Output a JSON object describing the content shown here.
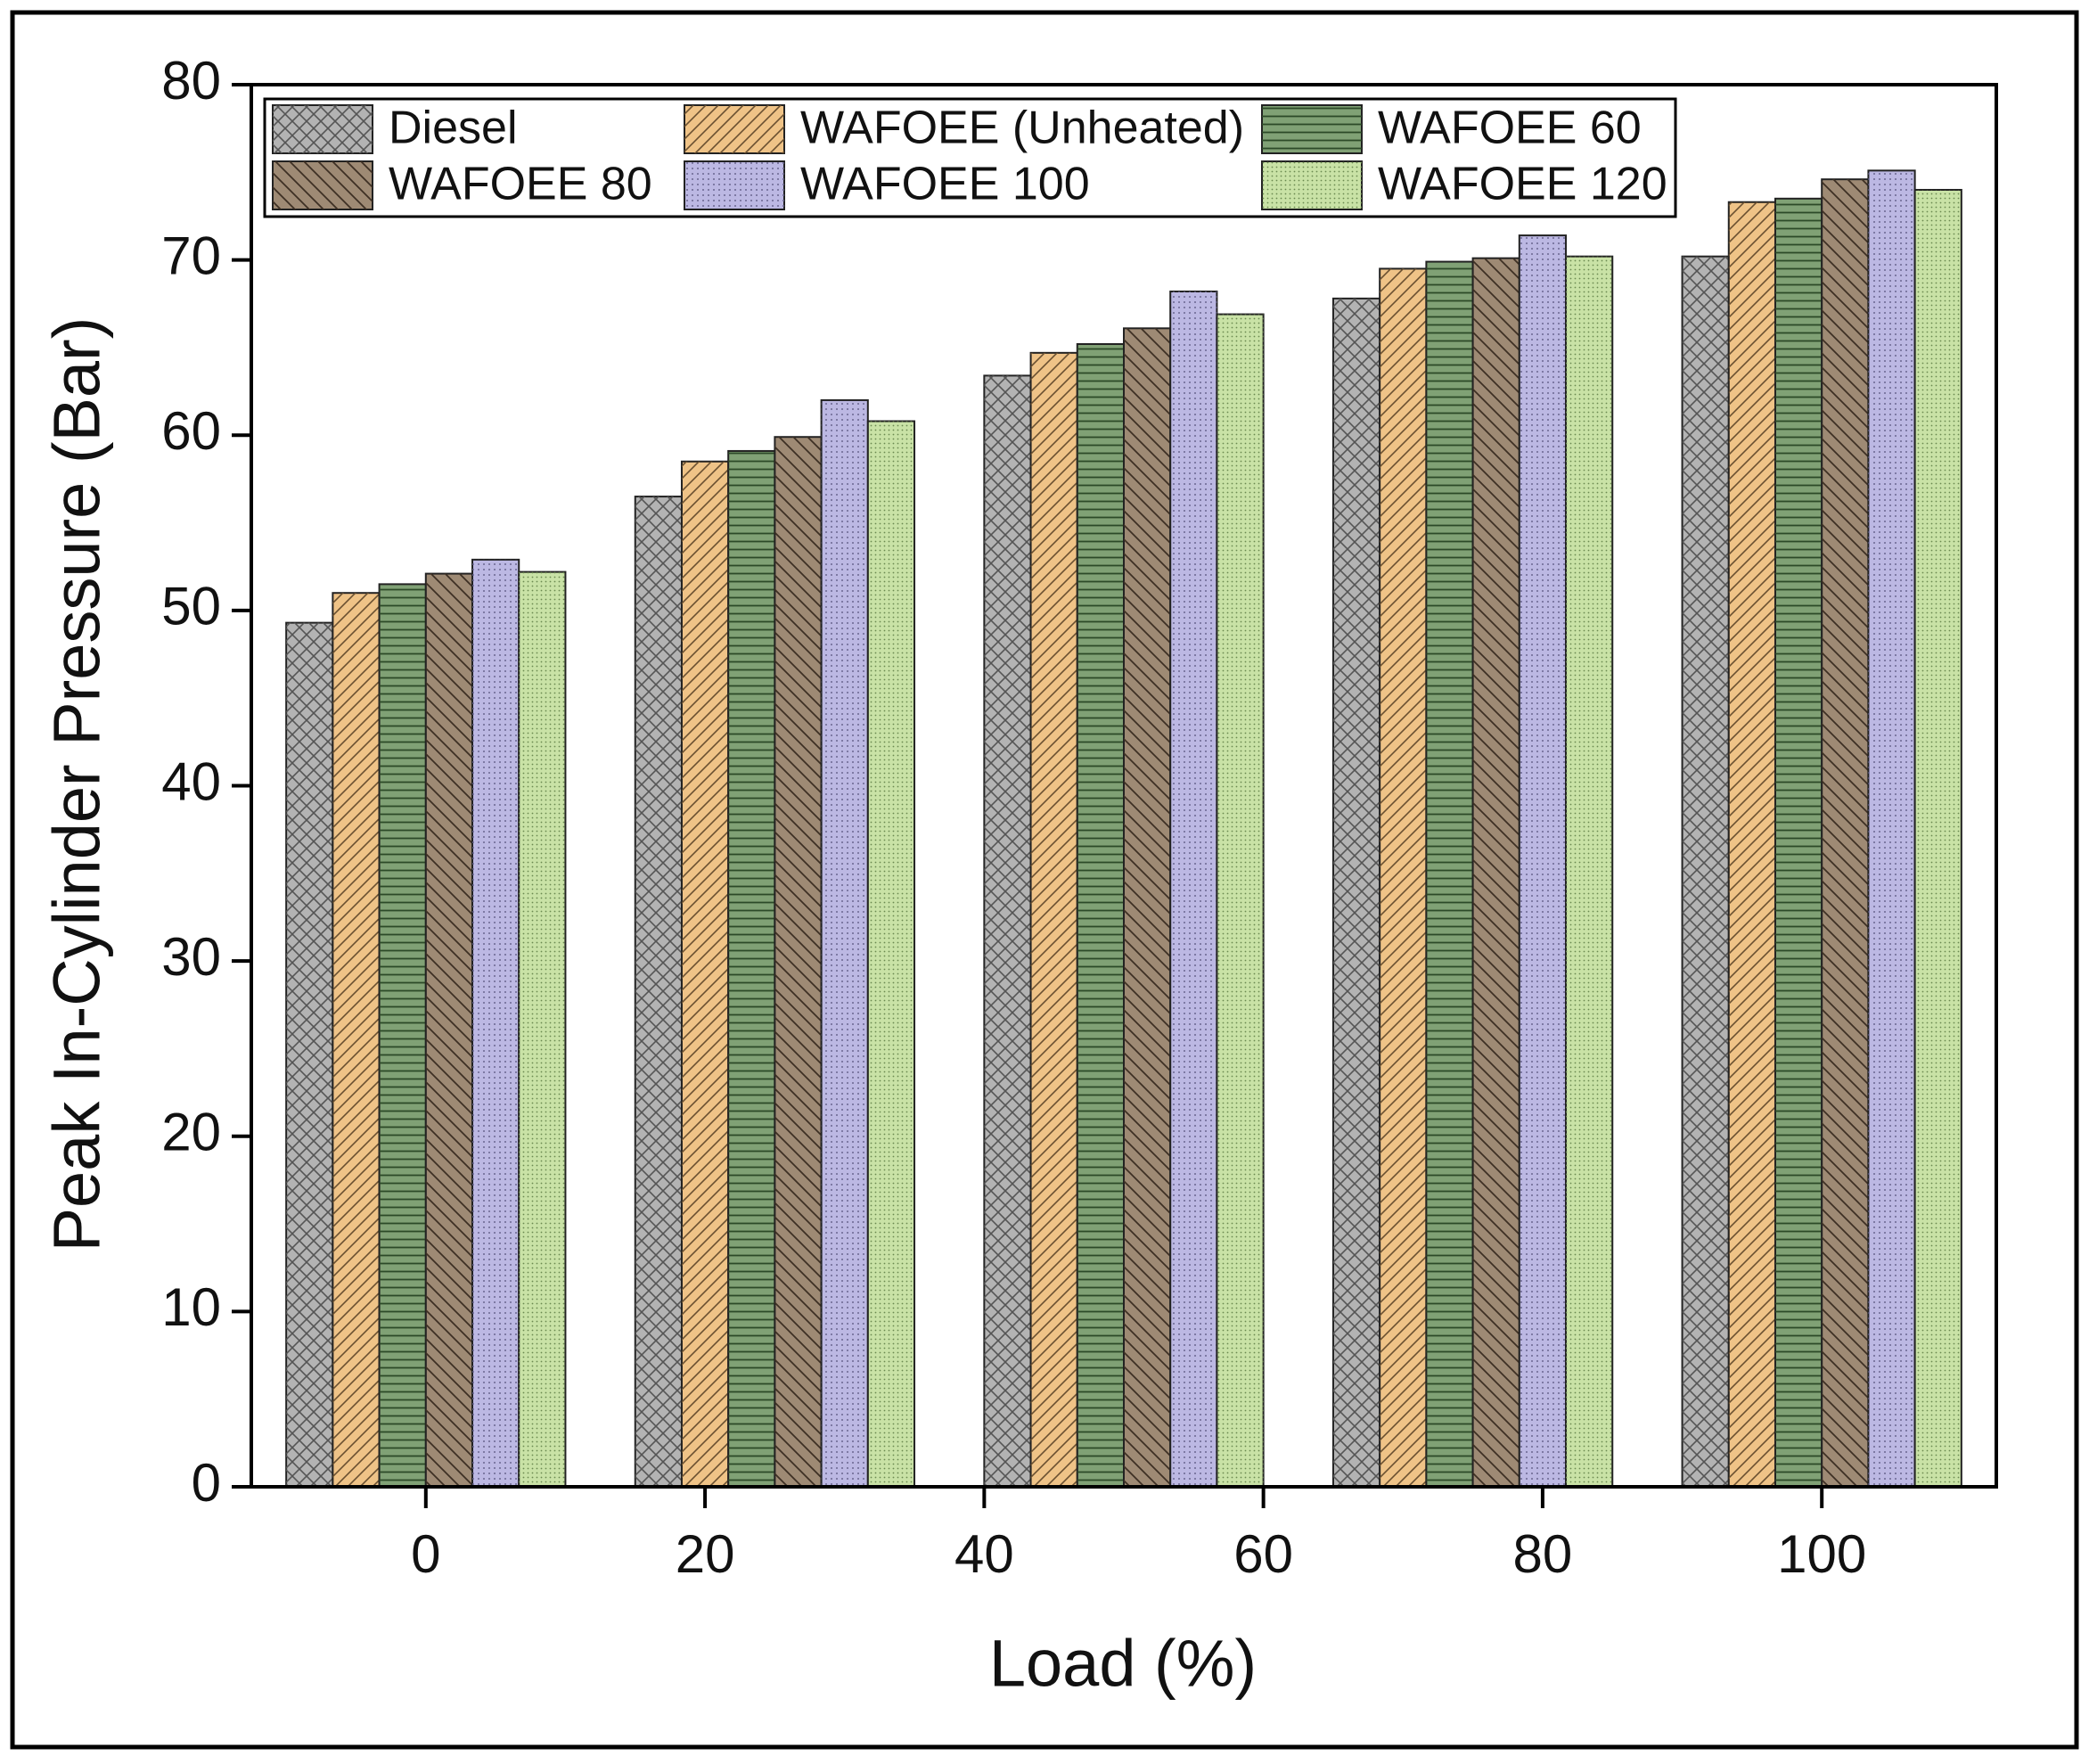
{
  "chart_data": {
    "type": "bar",
    "x_label": "Load (%)",
    "y_label": "Peak In-Cylinder Pressure (Bar)",
    "x": [
      0,
      25,
      50,
      75,
      100
    ],
    "group_width": 20,
    "xlim": [
      -12.5,
      112.5
    ],
    "xticks": [
      0,
      20,
      40,
      60,
      80,
      100
    ],
    "ylim": [
      0,
      80
    ],
    "yticks": [
      0,
      10,
      20,
      30,
      40,
      50,
      60,
      70,
      80
    ],
    "legend_position": "top-left",
    "legend_columns": 3,
    "series": [
      {
        "name": "Diesel",
        "color": "#b3b3b3",
        "pattern": "crosshatch",
        "values": [
          49.3,
          56.5,
          63.4,
          67.8,
          70.2
        ]
      },
      {
        "name": "WAFOEE (Unheated)",
        "color": "#efc387",
        "pattern": "forward-diagonal",
        "values": [
          51.0,
          58.5,
          64.7,
          69.5,
          73.3
        ]
      },
      {
        "name": "WAFOEE 60",
        "color": "#80a175",
        "pattern": "horizontal",
        "values": [
          51.5,
          59.1,
          65.2,
          69.9,
          73.5
        ]
      },
      {
        "name": "WAFOEE 80",
        "color": "#9e8a74",
        "pattern": "back-diagonal",
        "values": [
          52.1,
          59.9,
          66.1,
          70.1,
          74.6
        ]
      },
      {
        "name": "WAFOEE 100",
        "color": "#bcb8e3",
        "pattern": "dots",
        "values": [
          52.9,
          62.0,
          68.2,
          71.4,
          75.1
        ]
      },
      {
        "name": "WAFOEE 120",
        "color": "#c9e2a6",
        "pattern": "fine-dots",
        "values": [
          52.2,
          60.8,
          66.9,
          70.2,
          74.0
        ]
      }
    ]
  }
}
